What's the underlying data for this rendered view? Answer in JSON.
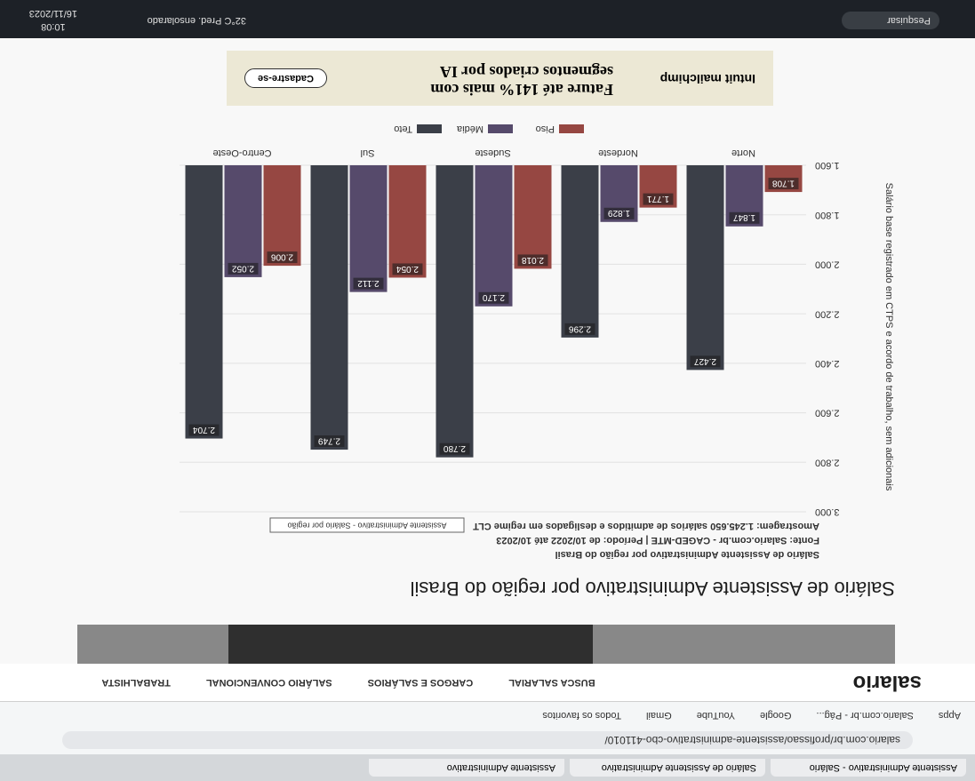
{
  "browser": {
    "tabs": [
      "Assistente Administrativo - Salário",
      "Salário de Assistente Administrativo",
      "Assistente Administrativo"
    ],
    "url": "salario.com.br/profissao/assistente-administrativo-cbo-411010/",
    "bookmarks": [
      "Apps",
      "Salario.com.br - Pág...",
      "Google",
      "YouTube",
      "Gmail",
      "Todos os favoritos"
    ]
  },
  "site": {
    "logo": "salario",
    "nav": [
      "BUSCA SALARIAL",
      "CARGOS E SALÁRIOS",
      "SALÁRIO CONVENCIONAL",
      "TRABALHISTA"
    ],
    "heading": "Salário de Assistente Administrativo por região do Brasil"
  },
  "ad": {
    "brand": "Intuit mailchimp",
    "headline": "Fature até 141% mais com segmentos criados por IA",
    "button": "Cadastre-se"
  },
  "taskbar": {
    "search": "Pesquisar",
    "weather": "32°C Pred. ensolarado",
    "time": "10:08",
    "date": "16/11/2023"
  },
  "chart_data": {
    "type": "bar",
    "title": "Salário de Assistente Administrativo por região do Brasil",
    "source": "Fonte: Salario.com.br - CAGED-MTE | Período: de 10/2022 até 10/2023",
    "sample": "Amostragem: 1.245.650 salários de admitidos e desligados em regime CLT",
    "tooltip": "Assistente Administrativo - Salário por região",
    "ylabel": "Salário base registrado em CTPS e acordo de trabalho, sem adicionais",
    "categories": [
      "Norte",
      "Nordeste",
      "Sudeste",
      "Sul",
      "Centro-Oeste"
    ],
    "series": [
      {
        "name": "Piso",
        "color": "#b5413a",
        "values": [
          1708,
          1771,
          2018,
          2054,
          2006
        ],
        "value_labels": [
          "1.708",
          "1.771",
          "2.018",
          "2.054",
          "2.006"
        ]
      },
      {
        "name": "Média",
        "color": "#5b4a7a",
        "values": [
          1847,
          1829,
          2170,
          2112,
          2052
        ],
        "value_labels": [
          "1.847",
          "1.829",
          "2.170",
          "2.112",
          "2.052"
        ]
      },
      {
        "name": "Teto",
        "color": "#3c4250",
        "values": [
          2427,
          2296,
          2780,
          2749,
          2704
        ],
        "value_labels": [
          "2.427",
          "2.296",
          "2.780",
          "2.749",
          "2.704"
        ]
      }
    ],
    "ylim": [
      1600,
      3000
    ],
    "yticks": [
      {
        "value": 1600,
        "label": "1.600"
      },
      {
        "value": 1800,
        "label": "1.800"
      },
      {
        "value": 2000,
        "label": "2.000"
      },
      {
        "value": 2200,
        "label": "2.200"
      },
      {
        "value": 2400,
        "label": "2.400"
      },
      {
        "value": 2600,
        "label": "2.600"
      },
      {
        "value": 2800,
        "label": "2.800"
      },
      {
        "value": 3000,
        "label": "3.000"
      }
    ],
    "grid": true
  }
}
